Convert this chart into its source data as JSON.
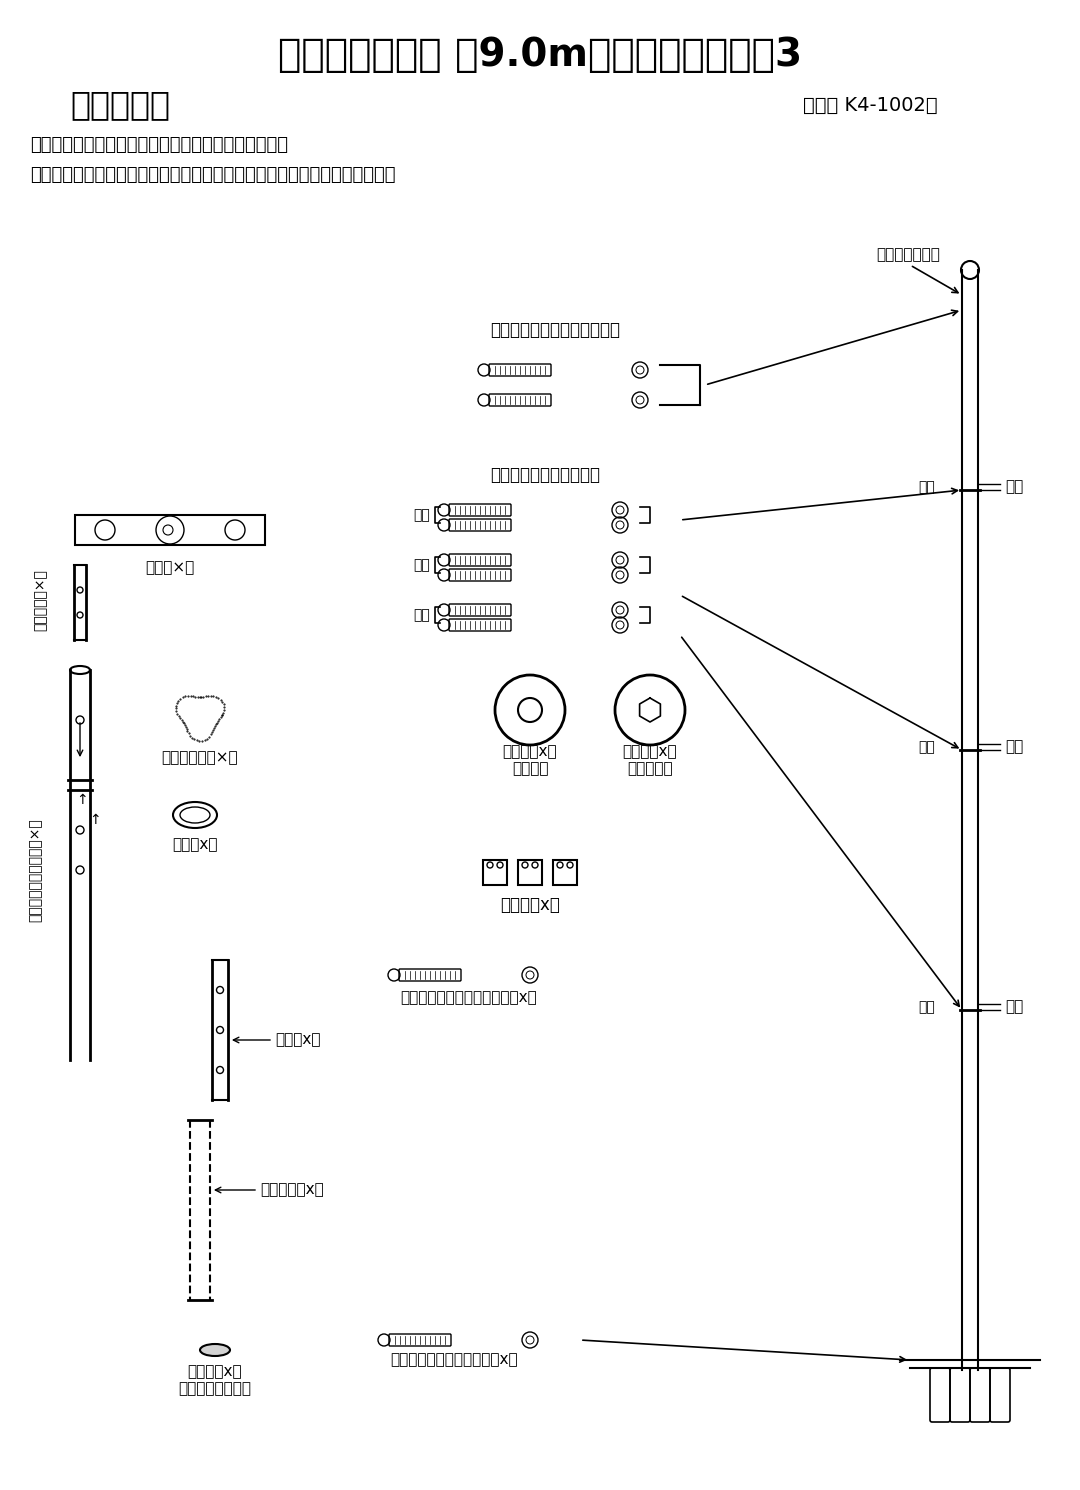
{
  "bg_color": "#ffffff",
  "title1": "幟旗用ポール　 約9.0m（４間用）タイプ3",
  "title2": "【部品図】",
  "model": "（型式 K4-1002）",
  "note1": "＊数量を確認し必要なものから順番に開けて下さい。",
  "note2": "　ボルト・ナット等（小部品）は紛失しないように空箱に開けてください。",
  "labels": {
    "suiheiki": "水平器×１",
    "adapter": "アダプター×１",
    "pole_body": "ポール本体（４本組）×１",
    "kaiten_rope": "回転ロープ止×１",
    "band": "バンドx２",
    "pile": "パイルx２",
    "shiobi_pipe": "塩ビパイプx２",
    "cap": "キャップx２\n（塩ビパイプ用）",
    "adapter_bolt": "アダプター止ボルト・ナット",
    "pole_bolt": "ポール止ボルト　ナット",
    "bolt_position": "ボルト取付部位",
    "spacer_round": "スペーサx８\n（丸穴）",
    "spacer_hex": "スペーサx８\n（六角穴）",
    "fixing_metal": "固定金具x３",
    "fixing_bolt": "固定金具止ボルト・袋ナットx６",
    "base_bolt": "基パイプ止ボルト・ナットx１",
    "num1": "１番",
    "num2": "２番",
    "num3": "３番",
    "ban1": "１番",
    "ban2": "２番",
    "ban3": "３番"
  }
}
